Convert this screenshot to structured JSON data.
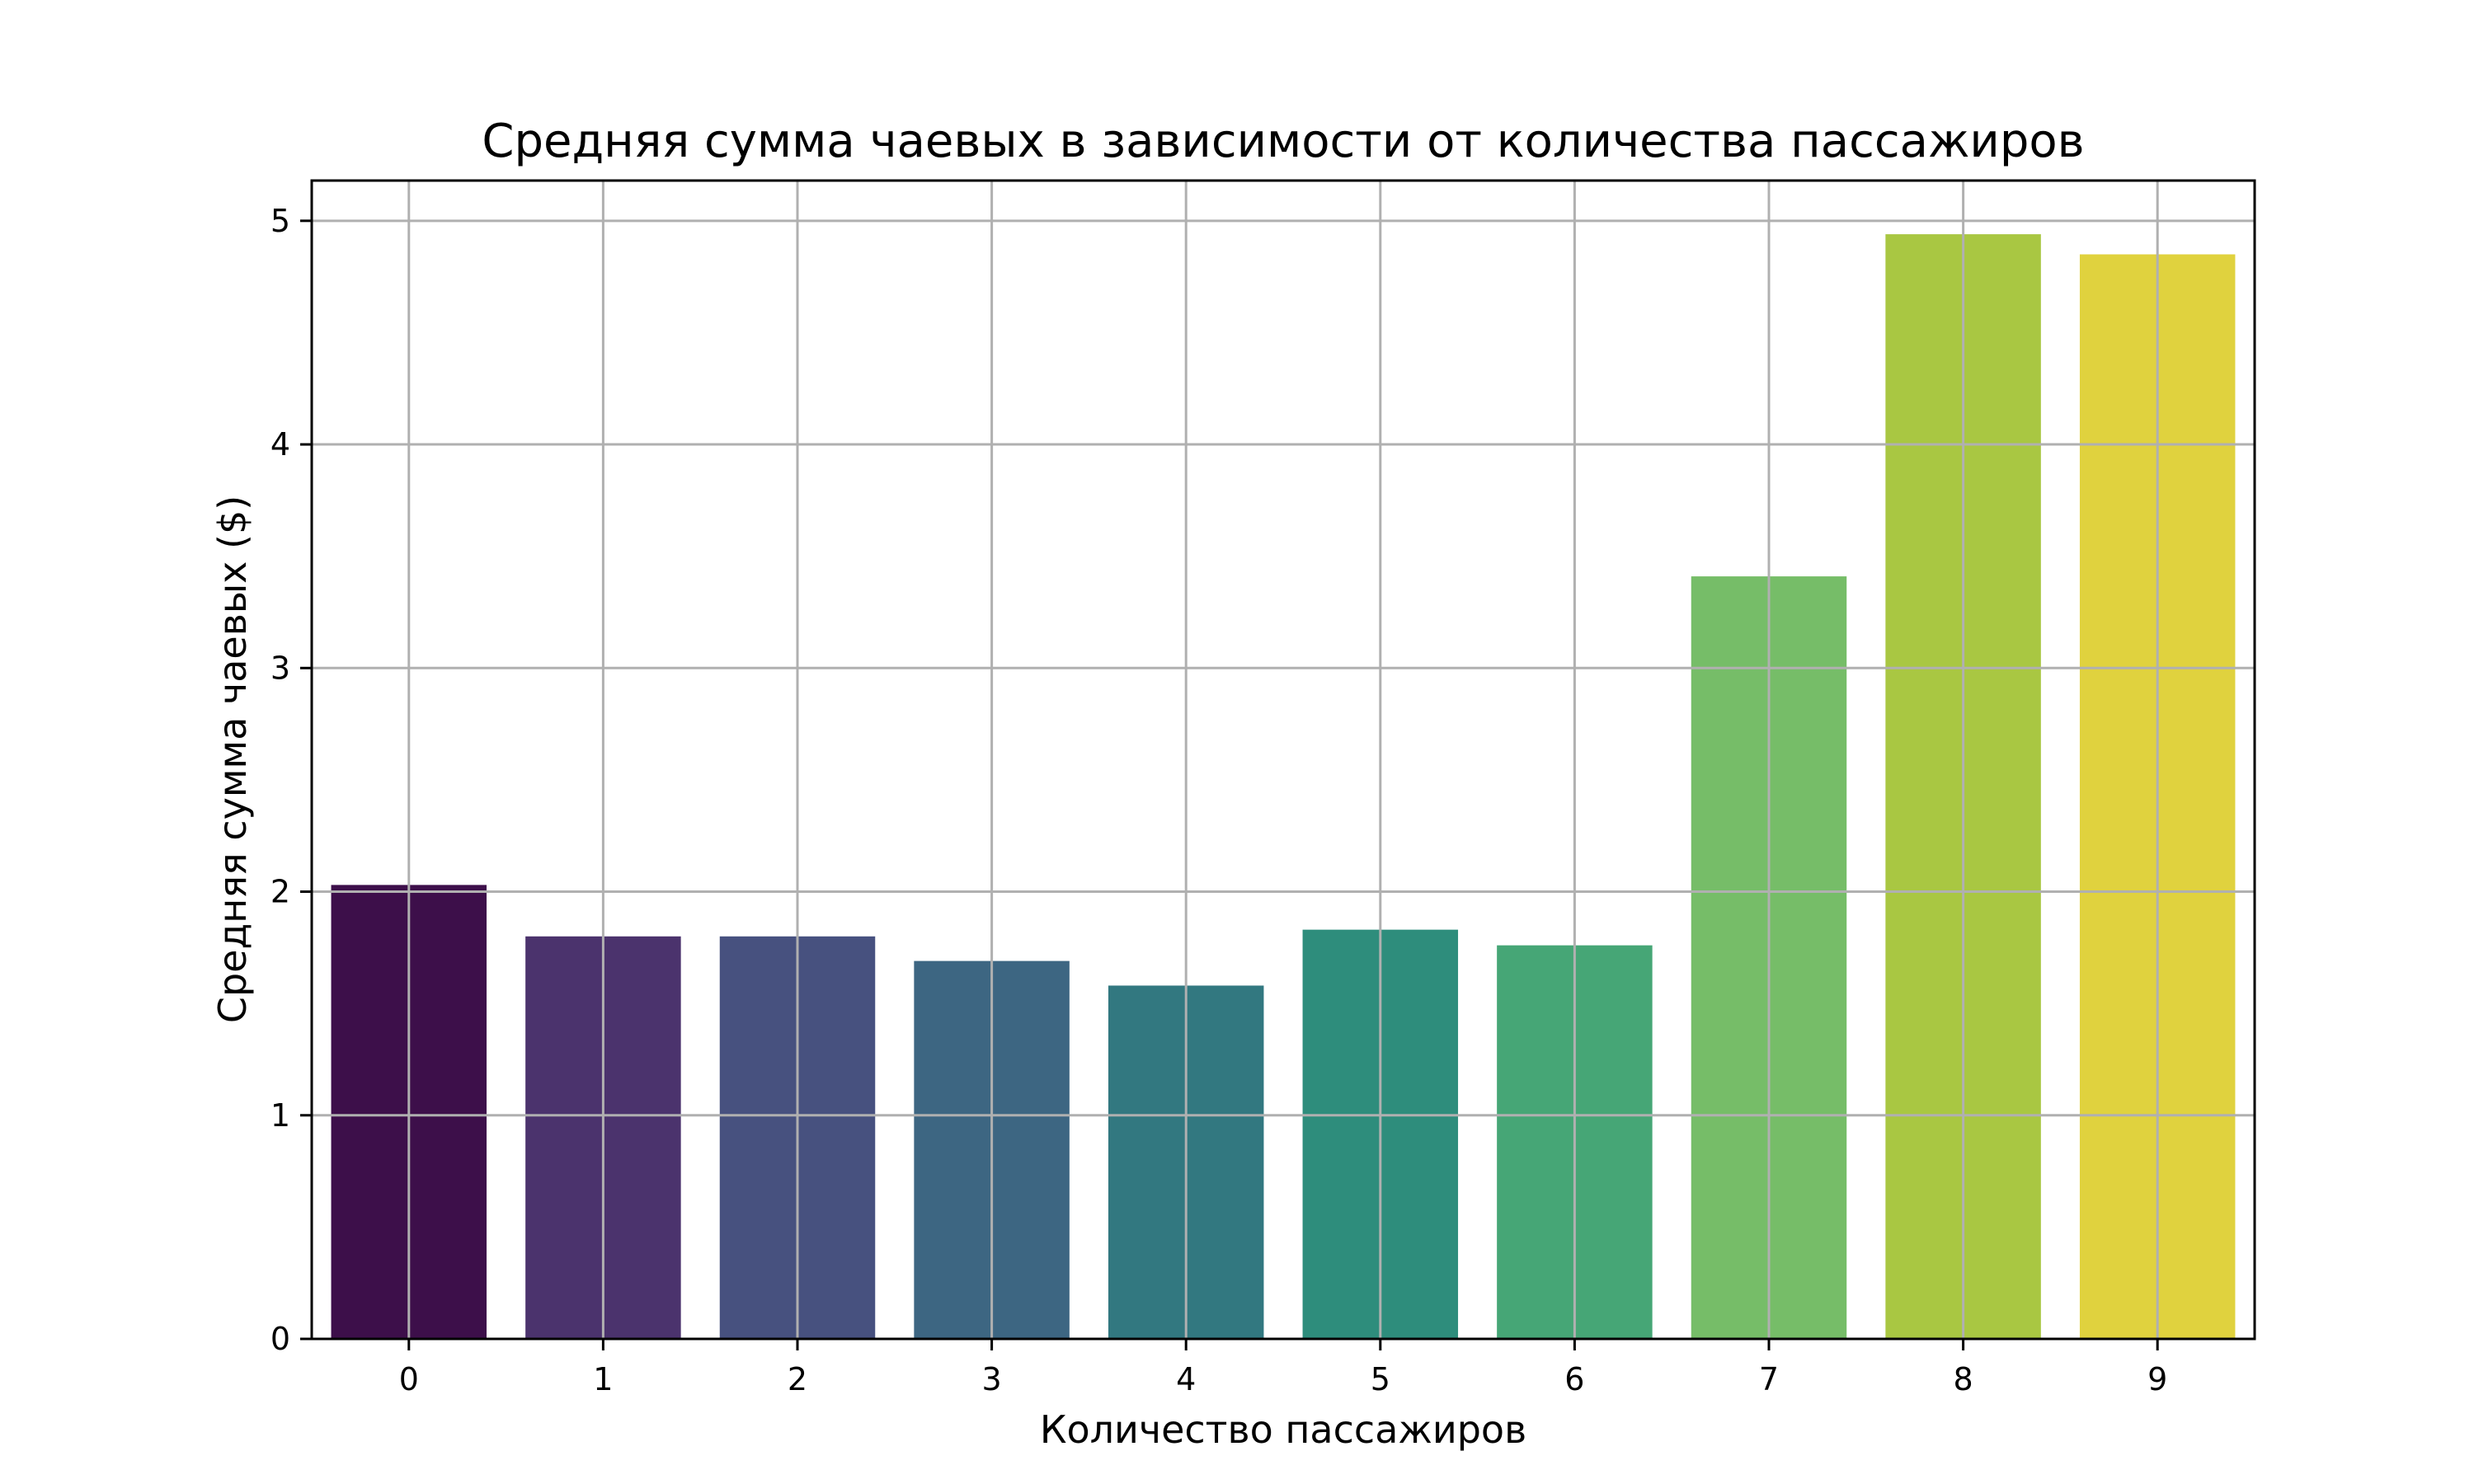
{
  "chart_data": {
    "type": "bar",
    "title": "Средняя сумма чаевых в зависимости от количества пассажиров",
    "xlabel": "Количество пассажиров",
    "ylabel": "Средняя сумма чаевых ($)",
    "categories": [
      "0",
      "1",
      "2",
      "3",
      "4",
      "5",
      "6",
      "7",
      "8",
      "9"
    ],
    "values": [
      2.03,
      1.8,
      1.8,
      1.69,
      1.58,
      1.83,
      1.76,
      3.41,
      4.94,
      4.85
    ],
    "colors": [
      "#3d0f4a",
      "#4b336d",
      "#47517f",
      "#3d6682",
      "#327880",
      "#2e8d7c",
      "#46a676",
      "#76bd68",
      "#a9c742",
      "#e0d23e"
    ],
    "ylim": [
      0,
      5.18
    ],
    "yticks": [
      "0",
      "1",
      "2",
      "3",
      "4",
      "5"
    ],
    "grid": true,
    "legend": "none"
  }
}
